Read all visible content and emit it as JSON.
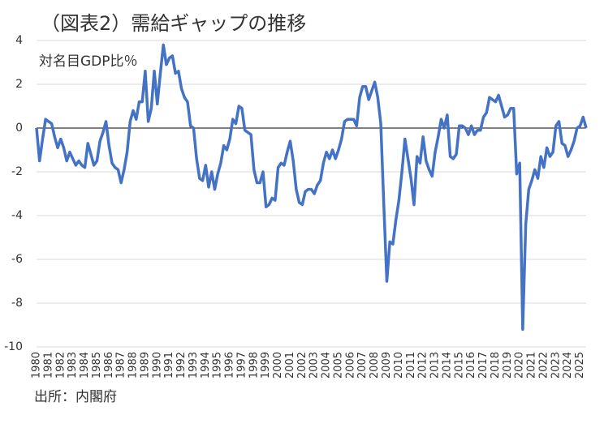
{
  "chart_data": {
    "type": "line",
    "title": "（図表2）需給ギャップの推移",
    "annotation": "対名目GDP比％",
    "source": "出所：内閣府",
    "categories": [
      "1980",
      null,
      null,
      null,
      "1981",
      null,
      null,
      null,
      "1982",
      null,
      null,
      null,
      "1983",
      null,
      null,
      null,
      "1984",
      null,
      null,
      null,
      "1985",
      null,
      null,
      null,
      "1986",
      null,
      null,
      null,
      "1987",
      null,
      null,
      null,
      "1988",
      null,
      null,
      null,
      "1989",
      null,
      null,
      null,
      "1990",
      null,
      null,
      null,
      "1991",
      null,
      null,
      null,
      "1992",
      null,
      null,
      null,
      "1993",
      null,
      null,
      null,
      "1994",
      null,
      null,
      null,
      "1995",
      null,
      null,
      null,
      "1996",
      null,
      null,
      null,
      "1997",
      null,
      null,
      null,
      "1998",
      null,
      null,
      null,
      "1999",
      null,
      null,
      null,
      "2000",
      null,
      null,
      null,
      "2001",
      null,
      null,
      null,
      "2002",
      null,
      null,
      null,
      "2003",
      null,
      null,
      null,
      "2004",
      null,
      null,
      null,
      "2005",
      null,
      null,
      null,
      "2006",
      null,
      null,
      null,
      "2007",
      null,
      null,
      null,
      "2008",
      null,
      null,
      null,
      "2009",
      null,
      null,
      null,
      "2010",
      null,
      null,
      null,
      "2011",
      null,
      null,
      null,
      "2012",
      null,
      null,
      null,
      "2013",
      null,
      null,
      null,
      "2014",
      null,
      null,
      null,
      "2015",
      null,
      null,
      null,
      "2016",
      null,
      null,
      null,
      "2017",
      null,
      null,
      null,
      "2018",
      null,
      null,
      null,
      "2019",
      null,
      null,
      null,
      "2020",
      null,
      null,
      null,
      "2021",
      null,
      null,
      null,
      "2022",
      null,
      null,
      null,
      "2023",
      null,
      null,
      null,
      "2024",
      null,
      null,
      null,
      "2025",
      null,
      null
    ],
    "series": [
      {
        "name": "需給ギャップ",
        "color": "#4472c4",
        "values": [
          0,
          -1.5,
          -0.5,
          0.4,
          0.3,
          0.2,
          -0.4,
          -0.9,
          -0.5,
          -0.9,
          -1.5,
          -1.1,
          -1.4,
          -1.7,
          -1.5,
          -1.7,
          -1.8,
          -0.7,
          -1.2,
          -1.7,
          -1.5,
          -0.6,
          -0.2,
          0.3,
          -0.8,
          -1.6,
          -1.8,
          -1.9,
          -2.5,
          -1.9,
          -1.1,
          0.3,
          0.8,
          0.4,
          1.2,
          1.2,
          2.6,
          0.3,
          0.9,
          2.6,
          1.1,
          2.5,
          3.8,
          2.9,
          3.2,
          3.3,
          2.5,
          2.6,
          1.8,
          1.4,
          1.2,
          0.1,
          0.0,
          -1.4,
          -2.3,
          -2.4,
          -1.7,
          -2.7,
          -2.0,
          -2.8,
          -2.1,
          -1.6,
          -0.8,
          -1.0,
          -0.5,
          0.4,
          0.2,
          1.0,
          0.9,
          -0.1,
          -0.2,
          -0.3,
          -1.9,
          -2.5,
          -2.5,
          -2.0,
          -3.6,
          -3.5,
          -3.2,
          -3.3,
          -1.8,
          -1.6,
          -1.7,
          -1.1,
          -0.6,
          -1.5,
          -2.8,
          -3.4,
          -3.5,
          -2.9,
          -2.8,
          -2.8,
          -3.0,
          -2.6,
          -2.4,
          -1.6,
          -1.1,
          -1.4,
          -1.0,
          -1.4,
          -1.0,
          -0.5,
          0.3,
          0.4,
          0.4,
          0.4,
          0.1,
          1.4,
          1.9,
          1.9,
          1.3,
          1.7,
          2.1,
          1.4,
          0.2,
          -3.5,
          -7.0,
          -5.2,
          -5.3,
          -4.2,
          -3.3,
          -2.0,
          -0.5,
          -1.4,
          -2.3,
          -3.5,
          -1.3,
          -1.6,
          -0.4,
          -1.5,
          -1.9,
          -2.2,
          -1.1,
          -0.4,
          0.4,
          0.0,
          0.6,
          -1.3,
          -1.4,
          -1.2,
          0.1,
          0.1,
          0.0,
          -0.3,
          0.1,
          -0.3,
          -0.1,
          -0.1,
          0.5,
          0.7,
          1.4,
          1.3,
          1.2,
          1.5,
          1.0,
          0.5,
          0.6,
          0.9,
          0.9,
          -2.1,
          -1.6,
          -9.2,
          -4.4,
          -2.8,
          -2.4,
          -1.9,
          -2.3,
          -1.3,
          -1.8,
          -0.9,
          -1.3,
          -1.1,
          0.1,
          0.3,
          -0.7,
          -0.8,
          -1.3,
          -1.0,
          -0.6,
          0.0,
          0.1,
          0.5,
          0.0
        ]
      }
    ],
    "ylim": [
      -10,
      4
    ],
    "yticks": [
      4,
      2,
      0,
      -2,
      -4,
      -6,
      -8,
      -10
    ],
    "grid": true
  }
}
